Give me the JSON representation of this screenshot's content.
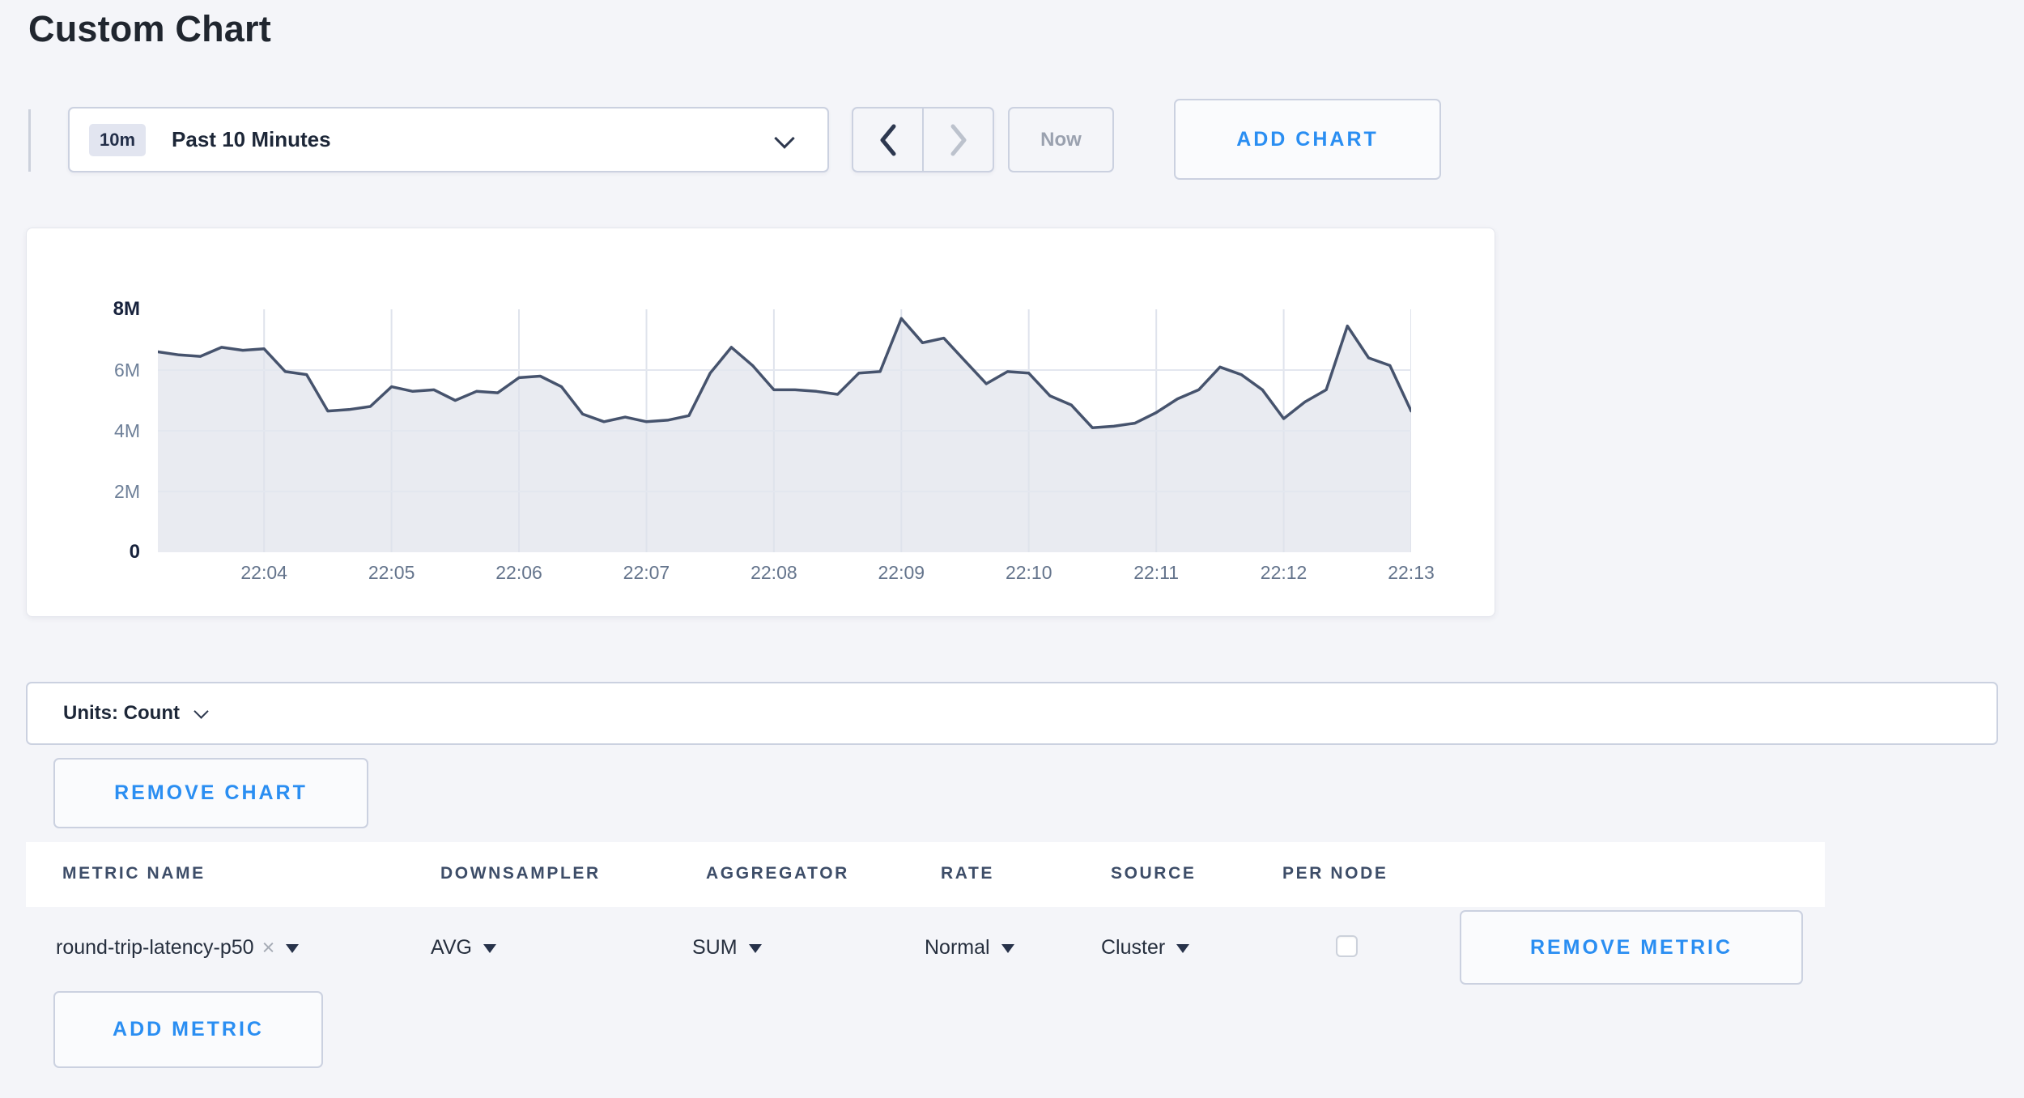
{
  "page": {
    "title": "Custom Chart"
  },
  "colors": {
    "page_bg": "#f4f5f9",
    "accent_blue": "#2a8ef2",
    "chart_line": "#46536d",
    "chart_fill": "#e9ebf1",
    "grid_line": "#dfe3ec",
    "dark_text": "#1d2738",
    "muted_text": "#9aa1af"
  },
  "time_controls": {
    "range_badge": "10m",
    "range_label": "Past 10 Minutes",
    "now_label": "Now",
    "add_chart_label": "ADD CHART"
  },
  "chart_data": {
    "type": "area",
    "title": "",
    "xlabel": "",
    "ylabel": "Count",
    "y_unit": "millions",
    "ylim": [
      0,
      8
    ],
    "grid": true,
    "legend": "none",
    "x_start": "22:03:10",
    "x_step_seconds": 10,
    "x_first_tick_offset_s": 50,
    "x_tick_step_s": 60,
    "x_span_s": 590,
    "x_tick_labels": [
      "22:04",
      "22:05",
      "22:06",
      "22:07",
      "22:08",
      "22:09",
      "22:10",
      "22:11",
      "22:12",
      "22:13"
    ],
    "y_ticks": [
      {
        "label": "0",
        "value": 0
      },
      {
        "label": "2M",
        "value": 2
      },
      {
        "label": "4M",
        "value": 4
      },
      {
        "label": "6M",
        "value": 6
      },
      {
        "label": "8M",
        "value": 8
      }
    ],
    "series": [
      {
        "name": "round-trip-latency-p50",
        "values": [
          6.6,
          6.5,
          6.45,
          6.75,
          6.65,
          6.7,
          5.95,
          5.85,
          4.65,
          4.7,
          4.8,
          5.45,
          5.3,
          5.35,
          5.0,
          5.3,
          5.25,
          5.75,
          5.8,
          5.45,
          4.55,
          4.3,
          4.45,
          4.3,
          4.35,
          4.5,
          5.9,
          6.75,
          6.15,
          5.35,
          5.35,
          5.3,
          5.2,
          5.9,
          5.95,
          7.7,
          6.9,
          7.05,
          6.3,
          5.55,
          5.95,
          5.9,
          5.15,
          4.85,
          4.1,
          4.15,
          4.25,
          4.6,
          5.05,
          5.35,
          6.1,
          5.85,
          5.35,
          4.4,
          4.95,
          5.35,
          7.45,
          6.4,
          6.15,
          4.65
        ]
      }
    ]
  },
  "units_bar": {
    "label": "Units: Count"
  },
  "chart_actions": {
    "remove_chart_label": "REMOVE CHART"
  },
  "metrics_table": {
    "columns": [
      "METRIC NAME",
      "DOWNSAMPLER",
      "AGGREGATOR",
      "RATE",
      "SOURCE",
      "PER NODE"
    ],
    "rows": [
      {
        "metric_name": "round-trip-latency-p50",
        "remove_x": "×",
        "downsampler": "AVG",
        "aggregator": "SUM",
        "rate": "Normal",
        "source": "Cluster",
        "per_node_checked": false,
        "remove_label": "REMOVE METRIC"
      }
    ],
    "add_metric_label": "ADD METRIC"
  }
}
